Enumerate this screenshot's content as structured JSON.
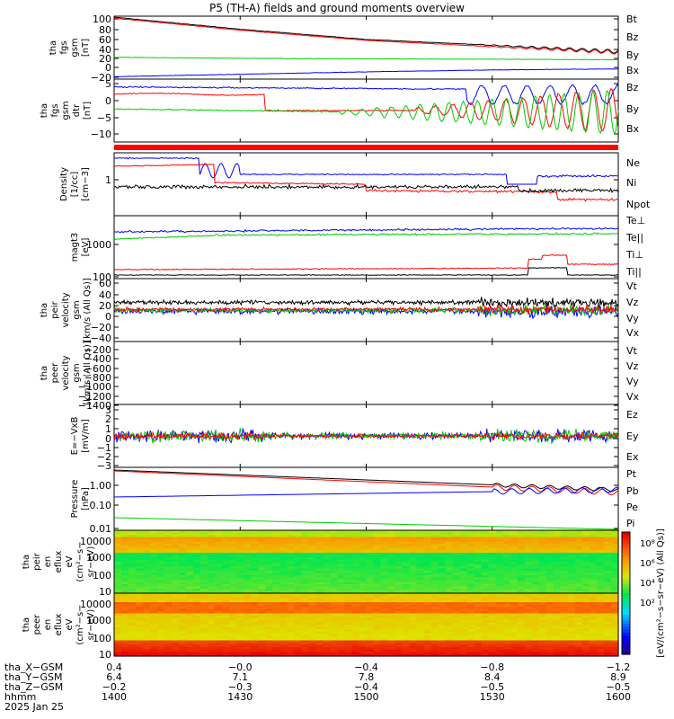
{
  "title": "P5 (TH-A) fields and ground moments overview",
  "panels": [
    {
      "id": "p1",
      "labels": [
        "tha",
        "fgs",
        "gsm",
        "[nT]"
      ],
      "ticks": [
        "100",
        "80",
        "60",
        "40",
        "20",
        "0",
        "−20"
      ],
      "ylim": [
        -25,
        105
      ],
      "legend": [
        {
          "text": "Bt",
          "color": "#000000"
        },
        {
          "text": "Bz",
          "color": "#ff0000"
        },
        {
          "text": "By",
          "color": "#00cc00"
        },
        {
          "text": "Bx",
          "color": "#0000ff"
        }
      ]
    },
    {
      "id": "p2",
      "labels": [
        "tha",
        "fgs",
        "gsm",
        "dtr",
        "[nT]"
      ],
      "ticks": [
        "5",
        "0",
        "−5",
        "−10"
      ],
      "ylim": [
        -14,
        6
      ],
      "legend": [
        {
          "text": "Bz",
          "color": "#ff0000"
        },
        {
          "text": "By",
          "color": "#00cc00"
        },
        {
          "text": "Bx",
          "color": "#0000ff"
        }
      ]
    },
    {
      "id": "p3",
      "labels": [
        "Density",
        "[1/cc]",
        "[cm−3]"
      ],
      "ticks": [
        "1"
      ],
      "ylim": [
        0,
        1
      ],
      "legend": [
        {
          "text": "Ne",
          "color": "#ff0000"
        },
        {
          "text": "Ni",
          "color": "#000000"
        },
        {
          "text": "Npot",
          "color": "#0000ff"
        }
      ]
    },
    {
      "id": "p4",
      "labels": [
        "magt3",
        "[eV]"
      ],
      "ticks": [
        "1000",
        "100"
      ],
      "ylim": [
        0,
        1
      ],
      "legend": [
        {
          "text": "Te⊥",
          "color": "#ff0000"
        },
        {
          "text": "Te||",
          "color": "#000000"
        },
        {
          "text": "Ti⊥",
          "color": "#00cc00"
        },
        {
          "text": "Ti||",
          "color": "#00cc00"
        }
      ]
    },
    {
      "id": "p5",
      "labels": [
        "tha",
        "peir",
        "velocity",
        "gsm",
        "[km/s (All Qs)]"
      ],
      "ticks": [
        "60",
        "40",
        "20",
        "0",
        "−20",
        "−40"
      ],
      "ylim": [
        -65,
        62
      ],
      "legend": [
        {
          "text": "Vt",
          "color": "#000000"
        },
        {
          "text": "Vz",
          "color": "#ff0000"
        },
        {
          "text": "Vy",
          "color": "#00cc00"
        },
        {
          "text": "Vx",
          "color": "#0000ff"
        }
      ]
    },
    {
      "id": "p6",
      "labels": [
        "tha",
        "peer",
        "velocity",
        "gsm",
        "[km/s (All Qs)]"
      ],
      "ticks": [
        "−200",
        "−400",
        "−600",
        "−800",
        "−1000",
        "−1200",
        "−1400"
      ],
      "ylim": [
        -1450,
        -100
      ],
      "legend": [
        {
          "text": "Vt",
          "color": "#000000"
        },
        {
          "text": "Vz",
          "color": "#ff0000"
        },
        {
          "text": "Vy",
          "color": "#00cc00"
        },
        {
          "text": "Vx",
          "color": "#0000ff"
        }
      ]
    },
    {
      "id": "p7",
      "labels": [
        "E=−VxB",
        "[mV/m]"
      ],
      "ticks": [
        "3",
        "2",
        "1",
        "0",
        "−1",
        "−2",
        "−3"
      ],
      "ylim": [
        -3.2,
        3.2
      ],
      "legend": [
        {
          "text": "Ez",
          "color": "#ff0000"
        },
        {
          "text": "Ey",
          "color": "#00cc00"
        },
        {
          "text": "Ex",
          "color": "#0000ff"
        }
      ]
    },
    {
      "id": "p8",
      "labels": [
        "Pressure",
        "[nPa]"
      ],
      "ticks": [
        "1.00",
        "0.10",
        "0.01"
      ],
      "ylim": [
        0.007,
        4
      ],
      "legend": [
        {
          "text": "Pt",
          "color": "#000000"
        },
        {
          "text": "Pb",
          "color": "#ff0000"
        },
        {
          "text": "Pe",
          "color": "#00cc00"
        },
        {
          "text": "Pi",
          "color": "#0000ff"
        }
      ]
    },
    {
      "id": "p9",
      "labels": [
        "tha",
        "peir",
        "en",
        "eflux",
        "eV",
        "(cm²−s−",
        "sr−eV)"
      ],
      "ticks": [
        "10000",
        "1000",
        "100",
        "10"
      ],
      "ylim": [
        7,
        16000
      ]
    },
    {
      "id": "p10",
      "labels": [
        "tha",
        "peer",
        "en",
        "eflux",
        "eV",
        "(cm²−s−",
        "sr−eV)"
      ],
      "ticks": [
        "10000",
        "1000",
        "100",
        "10"
      ],
      "ylim": [
        7,
        16000
      ]
    }
  ],
  "colorbar": {
    "label": "[eV/(cm²−s−sr−eV) (All Qs)]",
    "ticks": [
      "10⁸",
      "10⁶",
      "10⁴",
      "10²"
    ]
  },
  "xaxis": {
    "rows": [
      {
        "label": "tha_X−GSM",
        "values": [
          "0.4",
          "−0.0",
          "−0.4",
          "−0.8",
          "−1.2"
        ]
      },
      {
        "label": "tha_Y−GSM",
        "values": [
          "6.4",
          "7.1",
          "7.8",
          "8.4",
          "8.9"
        ]
      },
      {
        "label": "tha_Z−GSM",
        "values": [
          "−0.2",
          "−0.3",
          "−0.4",
          "−0.5",
          "−0.5"
        ]
      },
      {
        "label": "hhmm",
        "values": [
          "1400",
          "1430",
          "1500",
          "1530",
          "1600"
        ]
      }
    ],
    "date": "2025 Jan 25"
  },
  "chart_data": {
    "type": "line",
    "title": "P5 (TH-A) fields and ground moments overview",
    "x": [
      "1400",
      "1430",
      "1500",
      "1530",
      "1600"
    ],
    "series": [
      {
        "name": "Bt",
        "values": [
          103,
          78,
          57,
          45,
          32
        ]
      },
      {
        "name": "Bz",
        "values": [
          101,
          76,
          55,
          42,
          30
        ]
      },
      {
        "name": "By",
        "values": [
          20,
          18,
          17,
          16,
          15
        ]
      },
      {
        "name": "Bx",
        "values": [
          -20,
          -15,
          -10,
          -6,
          -4
        ]
      }
    ]
  }
}
